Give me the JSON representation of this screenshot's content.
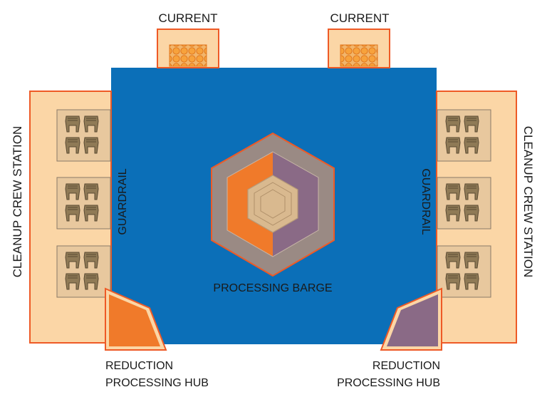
{
  "labels": {
    "current_left": "CURRENT",
    "current_right": "CURRENT",
    "station_left": "CLEANUP CREW STATION",
    "station_right": "CLEANUP CREW STATION",
    "guardrail_left": "GUARDRAIL",
    "guardrail_right": "GUARDRAIL",
    "barge": "PROCESSING BARGE",
    "hub_left_line1": "REDUCTION",
    "hub_left_line2": "PROCESSING HUB",
    "hub_right_line1": "REDUCTION",
    "hub_right_line2": "PROCESSING HUB"
  },
  "colors": {
    "barge_blue": "#0b6fb8",
    "station_fill": "#fbd6a6",
    "outline_orange": "#ee5a26",
    "hub_orange": "#f07a2a",
    "hub_purple": "#8a6a86",
    "hex_gray": "#9a8a84",
    "chair_fill": "#8f7a56"
  }
}
